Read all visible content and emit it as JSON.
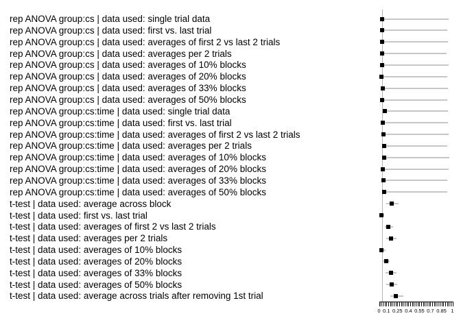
{
  "chart_data": {
    "type": "scatter",
    "subtype": "forest-dot-plot-with-intervals",
    "title": "",
    "xlabel": "",
    "ylabel": "",
    "xlim": [
      0,
      1
    ],
    "grid": false,
    "legend": "none",
    "x_major_ticks": [
      0,
      0.1,
      0.25,
      0.4,
      0.55,
      0.7,
      0.85,
      1
    ],
    "x_major_tick_labels": [
      "0",
      "0.1",
      "0.25",
      "0.4",
      "0.55",
      "0.7",
      "0.85",
      "1"
    ],
    "x_minor_tick_step": 0.025,
    "reference_line_x": 0.04,
    "colors": {
      "point": "#000000",
      "interval": "#c6c6c6",
      "reference_line": "#b4b4b4",
      "axis": "#000000",
      "background": "#ffffff"
    },
    "rows": [
      {
        "label": "rep ANOVA group:cs | data used: single trial data",
        "point": 0.04,
        "low": 0.04,
        "high": 0.95
      },
      {
        "label": "rep ANOVA group:cs | data used: first vs. last trial",
        "point": 0.04,
        "low": 0.04,
        "high": 0.93
      },
      {
        "label": "rep ANOVA group:cs | data used: averages of first 2 vs last 2 trials",
        "point": 0.04,
        "low": 0.04,
        "high": 0.94
      },
      {
        "label": "rep ANOVA group:cs | data used: averages per 2 trials",
        "point": 0.045,
        "low": 0.045,
        "high": 0.92
      },
      {
        "label": "rep ANOVA group:cs | data used: averages of 10% blocks",
        "point": 0.04,
        "low": 0.04,
        "high": 0.95
      },
      {
        "label": "rep ANOVA group:cs | data used: averages of 20% blocks",
        "point": 0.035,
        "low": 0.035,
        "high": 0.93
      },
      {
        "label": "rep ANOVA group:cs | data used: averages of 33% blocks",
        "point": 0.05,
        "low": 0.05,
        "high": 0.94
      },
      {
        "label": "rep ANOVA group:cs | data used: averages of 50% blocks",
        "point": 0.045,
        "low": 0.045,
        "high": 0.93
      },
      {
        "label": "rep ANOVA group:cs:time | data used: single trial data",
        "point": 0.075,
        "low": 0.075,
        "high": 0.94
      },
      {
        "label": "rep ANOVA group:cs:time | data used: first vs. last trial",
        "point": 0.05,
        "low": 0.05,
        "high": 0.94
      },
      {
        "label": "rep ANOVA group:cs:time | data used: averages of first 2 vs last 2 trials",
        "point": 0.06,
        "low": 0.06,
        "high": 0.95
      },
      {
        "label": "rep ANOVA group:cs:time | data used: averages per 2 trials",
        "point": 0.065,
        "low": 0.065,
        "high": 0.93
      },
      {
        "label": "rep ANOVA group:cs:time | data used: averages of 10% blocks",
        "point": 0.07,
        "low": 0.07,
        "high": 0.96
      },
      {
        "label": "rep ANOVA group:cs:time | data used: averages of 20% blocks",
        "point": 0.055,
        "low": 0.055,
        "high": 0.95
      },
      {
        "label": "rep ANOVA group:cs:time | data used: averages of 33% blocks",
        "point": 0.06,
        "low": 0.06,
        "high": 0.93
      },
      {
        "label": "rep ANOVA group:cs:time | data used: averages of 50% blocks",
        "point": 0.065,
        "low": 0.065,
        "high": 0.93
      },
      {
        "label": "t-test | data used: average across block",
        "point": 0.17,
        "low": 0.1,
        "high": 0.27
      },
      {
        "label": "t-test | data used: first vs. last trial",
        "point": 0.03,
        "low": 0.0,
        "high": 0.07
      },
      {
        "label": "t-test | data used: averages of first 2 vs last 2 trials",
        "point": 0.13,
        "low": 0.08,
        "high": 0.19
      },
      {
        "label": "t-test | data used: averages per 2 trials",
        "point": 0.165,
        "low": 0.1,
        "high": 0.24
      },
      {
        "label": "t-test | data used: averages of 10% blocks",
        "point": 0.035,
        "low": 0.0,
        "high": 0.09
      },
      {
        "label": "t-test | data used: averages of 20% blocks",
        "point": 0.095,
        "low": 0.045,
        "high": 0.15
      },
      {
        "label": "t-test | data used: averages of 33% blocks",
        "point": 0.16,
        "low": 0.09,
        "high": 0.24
      },
      {
        "label": "t-test | data used: averages of 50% blocks",
        "point": 0.17,
        "low": 0.1,
        "high": 0.25
      },
      {
        "label": "t-test | data used: average across trials after removing 1st trial",
        "point": 0.23,
        "low": 0.15,
        "high": 0.33
      }
    ]
  },
  "layout_note": "dot-and-interval plot, labels left, plot strip right, minor-tick rug axis at bottom"
}
